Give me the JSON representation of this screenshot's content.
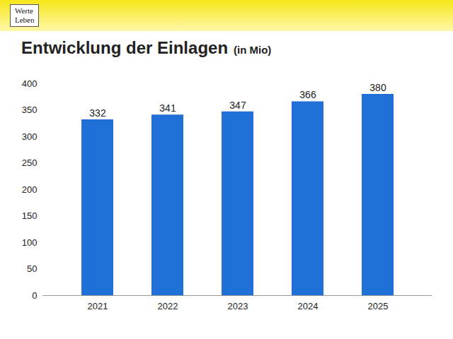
{
  "chart_data": {
    "type": "bar",
    "title": "Entwicklung der Einlagen",
    "subtitle": "(in Mio)",
    "annotations": [
      "Werte",
      "Leben"
    ],
    "categories": [
      "2021",
      "2022",
      "2023",
      "2024",
      "2025"
    ],
    "values": [
      332,
      341,
      347,
      366,
      380
    ],
    "color": "#1f6fd6",
    "ylim": [
      0,
      400
    ],
    "yticks": [
      0,
      50,
      100,
      150,
      200,
      250,
      300,
      350,
      400
    ],
    "grid": false,
    "data_labels": true
  }
}
